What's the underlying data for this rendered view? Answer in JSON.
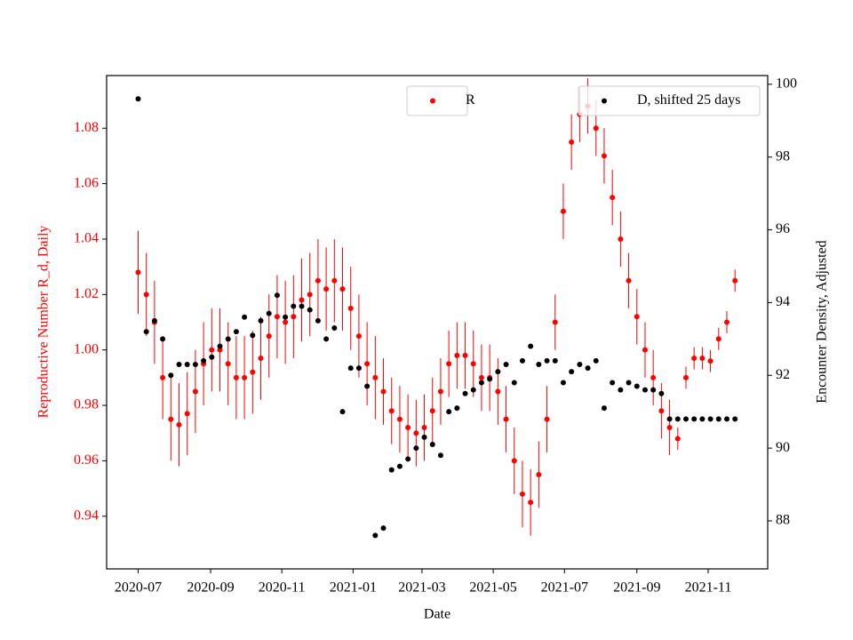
{
  "chart_data": {
    "type": "scatter",
    "xlabel": "Date",
    "ylabel": "Reproductive Number R_d, Daily",
    "y2label": "Encounter Density, Adjusted",
    "x": [
      0,
      7,
      14,
      21,
      28,
      35,
      42,
      49,
      56,
      63,
      70,
      77,
      84,
      91,
      98,
      105,
      112,
      119,
      126,
      133,
      140,
      147,
      154,
      161,
      168,
      175,
      182,
      189,
      196,
      203,
      210,
      217,
      224,
      231,
      238,
      245,
      252,
      259,
      266,
      273,
      280,
      287,
      294,
      301,
      308,
      315,
      322,
      329,
      336,
      343,
      350,
      357,
      364,
      371,
      378,
      385,
      392,
      399,
      406,
      413,
      420,
      427,
      434,
      441,
      448,
      455,
      462,
      469,
      476,
      483,
      490,
      497,
      504,
      511
    ],
    "xlim": [
      -27,
      539
    ],
    "xticks": [
      {
        "value": 0,
        "label": "2020-07"
      },
      {
        "value": 62,
        "label": "2020-09"
      },
      {
        "value": 123,
        "label": "2020-11"
      },
      {
        "value": 184,
        "label": "2021-01"
      },
      {
        "value": 243,
        "label": "2021-03"
      },
      {
        "value": 304,
        "label": "2021-05"
      },
      {
        "value": 365,
        "label": "2021-07"
      },
      {
        "value": 427,
        "label": "2021-09"
      },
      {
        "value": 488,
        "label": "2021-11"
      }
    ],
    "ylim": [
      0.921,
      1.099
    ],
    "yticks": [
      0.94,
      0.96,
      0.98,
      {
        "value": 1,
        "label": "1.00"
      },
      1.02,
      1.04,
      1.06,
      1.08
    ],
    "y2lim": [
      86.68,
      100.24
    ],
    "y2ticks": [
      88,
      90,
      92,
      94,
      96,
      98,
      100
    ],
    "ycolor": "#ff0000",
    "series": [
      {
        "name": "R",
        "color": "#ff0000",
        "axis": "y",
        "legend": "upper center",
        "values": [
          1.028,
          1.02,
          1.01,
          0.99,
          0.975,
          0.973,
          0.977,
          0.985,
          0.995,
          1.0,
          1.0,
          0.995,
          0.99,
          0.99,
          0.992,
          0.997,
          1.005,
          1.012,
          1.01,
          1.012,
          1.018,
          1.02,
          1.025,
          1.022,
          1.025,
          1.022,
          1.015,
          1.005,
          0.995,
          0.99,
          0.985,
          0.978,
          0.975,
          0.972,
          0.97,
          0.972,
          0.978,
          0.985,
          0.995,
          0.998,
          0.998,
          0.995,
          0.99,
          0.99,
          0.985,
          0.975,
          0.96,
          0.948,
          0.945,
          0.955,
          0.975,
          1.01,
          1.05,
          1.075,
          1.085,
          1.088,
          1.08,
          1.07,
          1.055,
          1.04,
          1.025,
          1.012,
          1.0,
          0.99,
          0.978,
          0.972,
          0.968,
          0.99,
          0.997,
          0.997,
          0.996,
          1.004,
          1.01,
          1.025
        ],
        "errors": [
          0.015,
          0.015,
          0.015,
          0.015,
          0.015,
          0.015,
          0.015,
          0.015,
          0.015,
          0.015,
          0.015,
          0.015,
          0.015,
          0.015,
          0.015,
          0.015,
          0.015,
          0.015,
          0.015,
          0.015,
          0.015,
          0.015,
          0.015,
          0.015,
          0.015,
          0.015,
          0.015,
          0.015,
          0.015,
          0.015,
          0.012,
          0.012,
          0.012,
          0.012,
          0.012,
          0.012,
          0.012,
          0.012,
          0.012,
          0.012,
          0.012,
          0.012,
          0.012,
          0.012,
          0.012,
          0.012,
          0.012,
          0.012,
          0.012,
          0.012,
          0.012,
          0.01,
          0.01,
          0.01,
          0.01,
          0.01,
          0.01,
          0.01,
          0.01,
          0.01,
          0.01,
          0.01,
          0.01,
          0.01,
          0.01,
          0.01,
          0.004,
          0.004,
          0.004,
          0.004,
          0.004,
          0.004,
          0.004,
          0.004
        ]
      },
      {
        "name": "D, shifted 25 days",
        "color": "#000000",
        "axis": "y2",
        "legend": "upper right",
        "values": [
          99.6,
          93.2,
          93.5,
          93.0,
          92.0,
          92.3,
          92.3,
          92.3,
          92.4,
          92.5,
          92.8,
          93.0,
          93.2,
          93.6,
          93.1,
          93.5,
          93.7,
          94.2,
          93.6,
          93.9,
          93.9,
          93.8,
          93.5,
          93.0,
          93.3,
          91.0,
          92.2,
          92.2,
          91.7,
          87.6,
          87.8,
          89.4,
          89.5,
          89.7,
          90.0,
          90.3,
          90.1,
          89.8,
          91.0,
          91.1,
          91.5,
          91.6,
          91.8,
          91.9,
          92.1,
          92.3,
          91.8,
          92.4,
          92.8,
          92.3,
          92.4,
          92.4,
          91.8,
          92.1,
          92.3,
          92.2,
          92.4,
          91.1,
          91.8,
          91.6,
          91.8,
          91.7,
          91.6,
          91.6,
          91.5,
          90.8,
          90.8,
          90.8,
          90.8,
          90.8,
          90.8,
          90.8,
          90.8,
          90.8
        ]
      }
    ]
  }
}
